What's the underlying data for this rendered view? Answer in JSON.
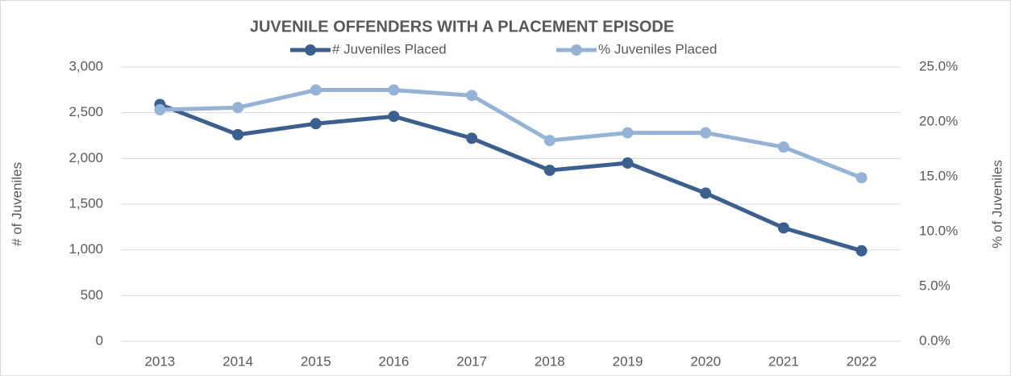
{
  "chart_data": {
    "type": "line",
    "title": "JUVENILE OFFENDERS WITH A PLACEMENT EPISODE",
    "ylabel": "# of Juveniles",
    "y2label": "% of Juveniles",
    "categories": [
      "2013",
      "2014",
      "2015",
      "2016",
      "2017",
      "2018",
      "2019",
      "2020",
      "2021",
      "2022"
    ],
    "series": [
      {
        "name": "# Juveniles Placed",
        "color": "#3b5f8e",
        "values": [
          2590,
          2260,
          2380,
          2460,
          2220,
          1870,
          1950,
          1620,
          1240,
          990
        ]
      },
      {
        "name": "% Juveniles Placed",
        "color": "#95b3d7",
        "axis": "y2",
        "values": [
          21.1,
          21.3,
          22.9,
          22.9,
          22.4,
          18.3,
          19.0,
          19.0,
          17.7,
          14.9
        ]
      }
    ],
    "ylim": [
      0,
      3000
    ],
    "yticks": [
      0,
      500,
      {
        "value": 1000,
        "label": "1,000"
      },
      {
        "value": 1500,
        "label": "1,500"
      },
      {
        "value": 2000,
        "label": "2,000"
      },
      {
        "value": 2500,
        "label": "2,500"
      },
      {
        "value": 3000,
        "label": "3,000"
      }
    ],
    "y2lim": [
      0,
      25
    ],
    "y2ticks": [
      {
        "value": 0,
        "label": "0.0%"
      },
      {
        "value": 5,
        "label": "5.0%"
      },
      {
        "value": 10,
        "label": "10.0%"
      },
      {
        "value": 15,
        "label": "15.0%"
      },
      {
        "value": 20,
        "label": "20.0%"
      },
      {
        "value": 25,
        "label": "25.0%"
      }
    ],
    "grid": true,
    "legend": "top"
  }
}
